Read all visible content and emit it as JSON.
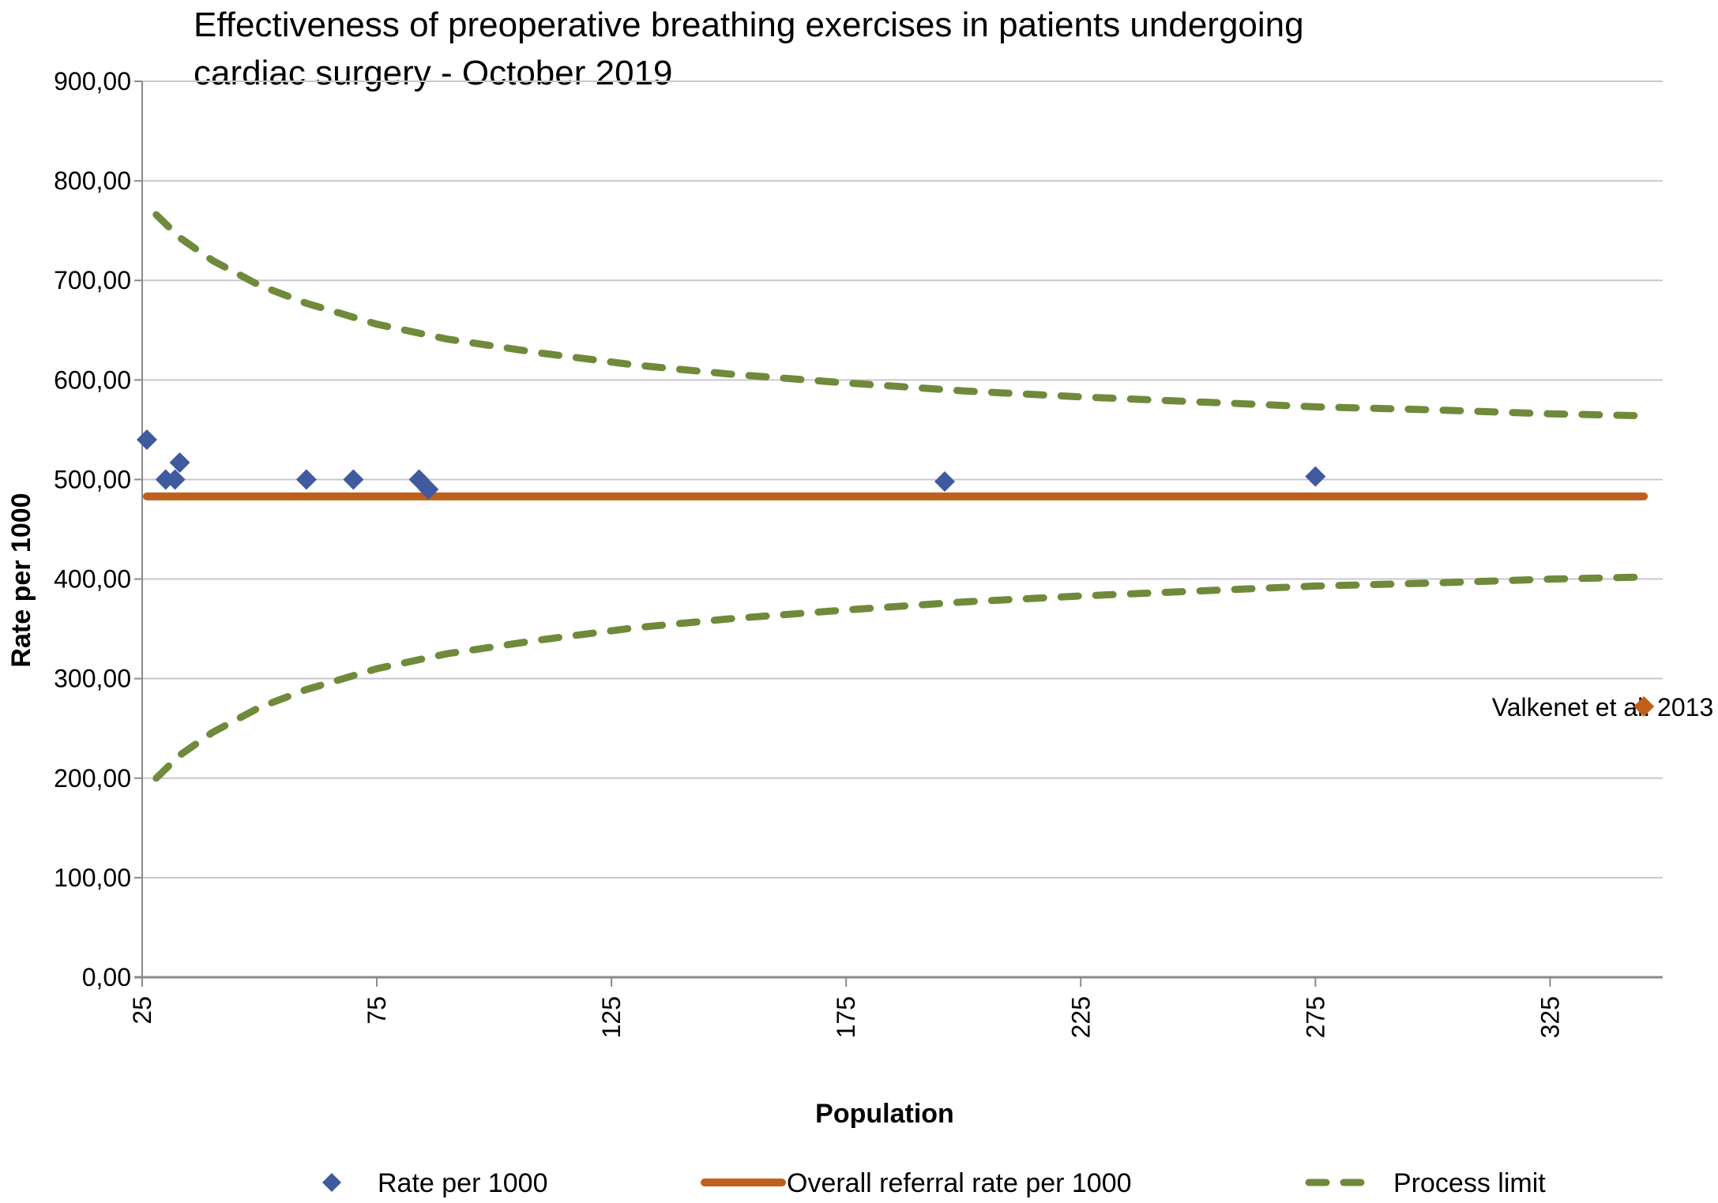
{
  "chart_data": {
    "type": "scatter",
    "title": "Effectiveness of preoperative breathing exercises in patients undergoing cardiac surgery - October 2019",
    "title_lines": [
      "Effectiveness of preoperative breathing exercises in patients undergoing",
      "cardiac surgery - October 2019"
    ],
    "xlabel": "Population",
    "ylabel": "Rate per 1000",
    "xlim": [
      25,
      349
    ],
    "ylim": [
      0,
      900
    ],
    "x_ticks": [
      25,
      75,
      125,
      175,
      225,
      275,
      325
    ],
    "x_tick_labels": [
      "25",
      "75",
      "125",
      "175",
      "225",
      "275",
      "325"
    ],
    "y_ticks": [
      0,
      100,
      200,
      300,
      400,
      500,
      600,
      700,
      800,
      900
    ],
    "y_tick_labels": [
      "0,00",
      "100,00",
      "200,00",
      "300,00",
      "400,00",
      "500,00",
      "600,00",
      "700,00",
      "800,00",
      "900,00"
    ],
    "grid": "horizontal",
    "legend_position": "bottom",
    "series": [
      {
        "name": "Rate per 1000",
        "kind": "scatter",
        "marker": "diamond",
        "color": "#3f5a9e",
        "points": [
          {
            "x": 26,
            "y": 540
          },
          {
            "x": 30,
            "y": 500
          },
          {
            "x": 32,
            "y": 500
          },
          {
            "x": 33,
            "y": 517
          },
          {
            "x": 60,
            "y": 500
          },
          {
            "x": 70,
            "y": 500
          },
          {
            "x": 84,
            "y": 500
          },
          {
            "x": 86,
            "y": 490
          },
          {
            "x": 196,
            "y": 498
          },
          {
            "x": 275,
            "y": 503
          }
        ]
      },
      {
        "name": "Overall referral rate per 1000",
        "kind": "line",
        "color": "#c0601c",
        "points": [
          {
            "x": 26,
            "y": 483
          },
          {
            "x": 345,
            "y": 483
          }
        ]
      },
      {
        "name": "Process limit",
        "kind": "dashed-line",
        "role": "upper",
        "color": "#6f8a3a",
        "points": [
          {
            "x": 28,
            "y": 766
          },
          {
            "x": 33,
            "y": 743
          },
          {
            "x": 40,
            "y": 720
          },
          {
            "x": 50,
            "y": 695
          },
          {
            "x": 60,
            "y": 677
          },
          {
            "x": 75,
            "y": 656
          },
          {
            "x": 90,
            "y": 641
          },
          {
            "x": 110,
            "y": 627
          },
          {
            "x": 130,
            "y": 615
          },
          {
            "x": 150,
            "y": 606
          },
          {
            "x": 175,
            "y": 597
          },
          {
            "x": 200,
            "y": 589
          },
          {
            "x": 225,
            "y": 583
          },
          {
            "x": 250,
            "y": 578
          },
          {
            "x": 275,
            "y": 573
          },
          {
            "x": 300,
            "y": 570
          },
          {
            "x": 325,
            "y": 566
          },
          {
            "x": 345,
            "y": 564
          }
        ]
      },
      {
        "name": "Process limit",
        "kind": "dashed-line",
        "role": "lower",
        "color": "#6f8a3a",
        "points": [
          {
            "x": 28,
            "y": 200
          },
          {
            "x": 33,
            "y": 223
          },
          {
            "x": 40,
            "y": 246
          },
          {
            "x": 50,
            "y": 271
          },
          {
            "x": 60,
            "y": 289
          },
          {
            "x": 75,
            "y": 310
          },
          {
            "x": 90,
            "y": 325
          },
          {
            "x": 110,
            "y": 339
          },
          {
            "x": 130,
            "y": 351
          },
          {
            "x": 150,
            "y": 360
          },
          {
            "x": 175,
            "y": 369
          },
          {
            "x": 200,
            "y": 377
          },
          {
            "x": 225,
            "y": 383
          },
          {
            "x": 250,
            "y": 388
          },
          {
            "x": 275,
            "y": 393
          },
          {
            "x": 300,
            "y": 396
          },
          {
            "x": 325,
            "y": 400
          },
          {
            "x": 345,
            "y": 402
          }
        ]
      },
      {
        "name": "Valkenet et al. 2013",
        "kind": "scatter",
        "marker": "diamond",
        "color": "#c0601c",
        "points": [
          {
            "x": 345,
            "y": 272
          }
        ]
      }
    ],
    "annotations": [
      {
        "text": "Valkenet et al. 2013",
        "x": 345,
        "y": 272
      }
    ],
    "legend": [
      {
        "label": "Rate per 1000",
        "symbol": "diamond",
        "color": "#3f5a9e"
      },
      {
        "label": "Overall referral rate per 1000",
        "symbol": "line",
        "color": "#c0601c"
      },
      {
        "label": "Process limit",
        "symbol": "dashed-line",
        "color": "#6f8a3a"
      }
    ],
    "colors": {
      "gridline": "#c9c6d3",
      "axis": "#8a8a8a"
    }
  }
}
